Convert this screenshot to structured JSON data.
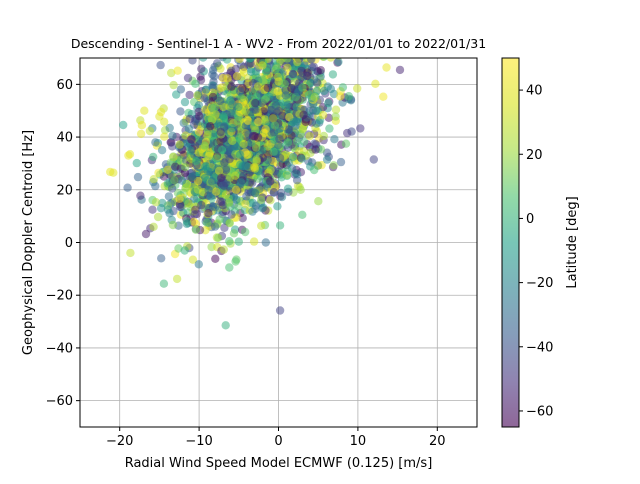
{
  "chart_data": {
    "type": "scatter",
    "title": "Descending - Sentinel-1 A - WV2 - From 2022/01/01 to 2022/01/31",
    "xlabel": "Radial Wind Speed Model ECMWF (0.125) [m/s]",
    "ylabel": "Geophysical Doppler Centroid [Hz]",
    "xlim": [
      -25,
      25
    ],
    "ylim": [
      -70,
      70
    ],
    "xticks": [
      -20,
      -10,
      0,
      10,
      20
    ],
    "yticks": [
      -60,
      -40,
      -20,
      0,
      20,
      40,
      60
    ],
    "xtick_labels": [
      "−20",
      "−10",
      "0",
      "10",
      "20"
    ],
    "ytick_labels": [
      "−60",
      "−40",
      "−20",
      "0",
      "20",
      "40",
      "60"
    ],
    "grid": true,
    "colormap": "viridis",
    "marker_alpha": 0.5,
    "colorbar": {
      "label": "Latitude [deg]",
      "range": [
        -65,
        50
      ],
      "ticks": [
        -60,
        -40,
        -20,
        0,
        20,
        40
      ],
      "tick_labels": [
        "−60",
        "−40",
        "−20",
        "0",
        "20",
        "40"
      ]
    },
    "points_sample": [
      {
        "x": -20.8,
        "y": 26.5,
        "lat": 38
      },
      {
        "x": -21.2,
        "y": 26.8,
        "lat": 40
      },
      {
        "x": -18.9,
        "y": 33.0,
        "lat": 42
      },
      {
        "x": -18.7,
        "y": 33.5,
        "lat": 40
      },
      {
        "x": -19.0,
        "y": 20.8,
        "lat": -35
      },
      {
        "x": -17.7,
        "y": 24.8,
        "lat": -33
      },
      {
        "x": -17.3,
        "y": 41.2,
        "lat": 40
      },
      {
        "x": -17.2,
        "y": 44.5,
        "lat": 42
      },
      {
        "x": -16.9,
        "y": 50.0,
        "lat": 38
      },
      {
        "x": -16.2,
        "y": 42.3,
        "lat": 30
      },
      {
        "x": -15.0,
        "y": 47.8,
        "lat": 38
      },
      {
        "x": -14.8,
        "y": 49.5,
        "lat": 40
      },
      {
        "x": -14.4,
        "y": 45.8,
        "lat": 35
      },
      {
        "x": -15.5,
        "y": 38.0,
        "lat": -30
      },
      {
        "x": -13.8,
        "y": 17.5,
        "lat": -30
      },
      {
        "x": -13.4,
        "y": 20.5,
        "lat": -40
      },
      {
        "x": -12.4,
        "y": 13.5,
        "lat": -42
      },
      {
        "x": -12.7,
        "y": 65.2,
        "lat": 44
      },
      {
        "x": -11.4,
        "y": 62.4,
        "lat": -50
      },
      {
        "x": -10.4,
        "y": 4.8,
        "lat": 15
      },
      {
        "x": -9.0,
        "y": 7.5,
        "lat": 10
      },
      {
        "x": -7.6,
        "y": 1.8,
        "lat": 15
      },
      {
        "x": -6.2,
        "y": 0.5,
        "lat": 5
      },
      {
        "x": -5.6,
        "y": 3.5,
        "lat": 12
      },
      {
        "x": -5.0,
        "y": 0.3,
        "lat": 0
      },
      {
        "x": -4.2,
        "y": 4.0,
        "lat": 8
      },
      {
        "x": -5.3,
        "y": -6.5,
        "lat": 10
      },
      {
        "x": -5.4,
        "y": -7.2,
        "lat": 8
      },
      {
        "x": -6.2,
        "y": -9.5,
        "lat": 5
      },
      {
        "x": -1.6,
        "y": 0.0,
        "lat": -30
      },
      {
        "x": 0.2,
        "y": -25.8,
        "lat": -45
      },
      {
        "x": 0.2,
        "y": 6.5,
        "lat": 0
      },
      {
        "x": 3.0,
        "y": 10.5,
        "lat": 5
      },
      {
        "x": 2.8,
        "y": 20.0,
        "lat": 20
      },
      {
        "x": 4.5,
        "y": 27.5,
        "lat": 5
      },
      {
        "x": 8.5,
        "y": 37.5,
        "lat": 10
      },
      {
        "x": 10.3,
        "y": 43.3,
        "lat": -50
      },
      {
        "x": 12.0,
        "y": 31.5,
        "lat": -45
      },
      {
        "x": 13.2,
        "y": 55.3,
        "lat": 45
      },
      {
        "x": 15.3,
        "y": 65.5,
        "lat": -55
      },
      {
        "x": 13.6,
        "y": 66.4,
        "lat": 42
      },
      {
        "x": 12.2,
        "y": 60.2,
        "lat": 38
      }
    ]
  }
}
